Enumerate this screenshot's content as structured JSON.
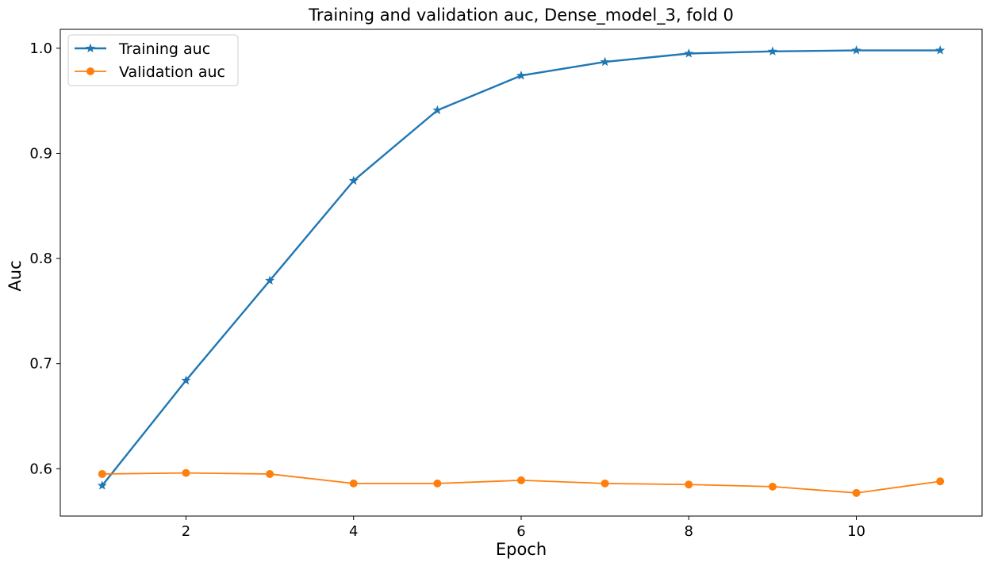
{
  "chart_data": {
    "type": "line",
    "title": "Training and validation auc, Dense_model_3, fold 0",
    "xlabel": "Epoch",
    "ylabel": "Auc",
    "xlim": [
      0.5,
      11.5
    ],
    "ylim": [
      0.555,
      1.018
    ],
    "xticks": [
      2,
      4,
      6,
      8,
      10
    ],
    "xtick_labels": [
      "2",
      "4",
      "6",
      "8",
      "10"
    ],
    "yticks": [
      0.6,
      0.7,
      0.8,
      0.9,
      1.0
    ],
    "ytick_labels": [
      "0.6",
      "0.7",
      "0.8",
      "0.9",
      "1.0"
    ],
    "grid": false,
    "legend": "upper-left",
    "x": [
      1,
      2,
      3,
      4,
      5,
      6,
      7,
      8,
      9,
      10,
      11
    ],
    "series": [
      {
        "name": "Training auc",
        "color": "#1f77b4",
        "marker": "star",
        "values": [
          0.584,
          0.684,
          0.779,
          0.874,
          0.941,
          0.974,
          0.987,
          0.995,
          0.997,
          0.998,
          0.998
        ]
      },
      {
        "name": "Validation auc",
        "color": "#ff7f0e",
        "marker": "circle",
        "values": [
          0.595,
          0.596,
          0.595,
          0.586,
          0.586,
          0.589,
          0.586,
          0.585,
          0.583,
          0.577,
          0.588
        ]
      }
    ]
  }
}
